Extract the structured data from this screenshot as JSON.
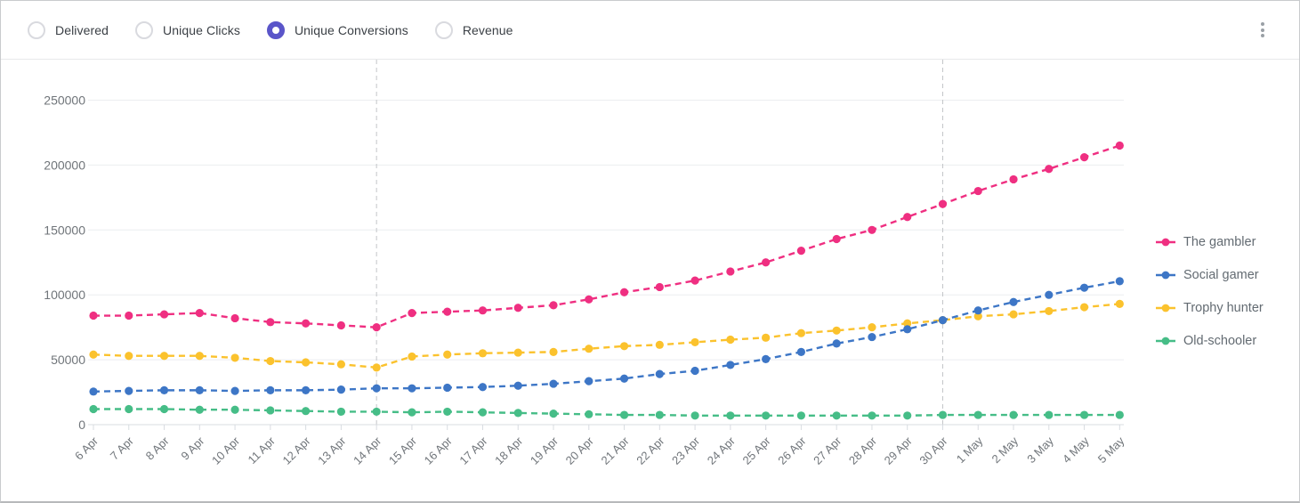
{
  "toolbar": {
    "options": [
      {
        "label": "Delivered",
        "selected": false
      },
      {
        "label": "Unique Clicks",
        "selected": false
      },
      {
        "label": "Unique Conversions",
        "selected": true
      },
      {
        "label": "Revenue",
        "selected": false
      }
    ],
    "menu_icon": "kebab-vertical-icon"
  },
  "colors": {
    "accent": "#5a55c9",
    "grid": "#eceef0",
    "axis": "#d8dce1",
    "marker_line": "#c3c5c8",
    "tick_text": "#70757a",
    "legend_text": "#636b72"
  },
  "chart_data": {
    "type": "line",
    "line_style": "dashed",
    "grid": "horizontal",
    "legend_position": "right",
    "categories": [
      "6 Apr",
      "7 Apr",
      "8 Apr",
      "9 Apr",
      "10 Apr",
      "11 Apr",
      "12 Apr",
      "13 Apr",
      "14 Apr",
      "15 Apr",
      "16 Apr",
      "17 Apr",
      "18 Apr",
      "19 Apr",
      "20 Apr",
      "21 Apr",
      "22 Apr",
      "23 Apr",
      "24 Apr",
      "25 Apr",
      "26 Apr",
      "27 Apr",
      "28 Apr",
      "29 Apr",
      "30 Apr",
      "1 May",
      "2 May",
      "3 May",
      "4 May",
      "5 May"
    ],
    "series": [
      {
        "name": "The gambler",
        "color": "#ef2f81",
        "values": [
          84000,
          84000,
          85000,
          86000,
          82000,
          79000,
          78000,
          76500,
          75000,
          86000,
          87000,
          88000,
          90000,
          92000,
          96500,
          102000,
          106000,
          111000,
          118000,
          125000,
          134000,
          143000,
          150000,
          160000,
          170000,
          180000,
          189000,
          197000,
          206000,
          215000
        ]
      },
      {
        "name": "Social gamer",
        "color": "#3d76c6",
        "values": [
          25500,
          26000,
          26500,
          26500,
          26000,
          26500,
          26500,
          27000,
          28000,
          28000,
          28500,
          29000,
          30000,
          31500,
          33500,
          35500,
          39000,
          41500,
          46000,
          50500,
          56000,
          62500,
          67500,
          73500,
          80500,
          88000,
          94500,
          100000,
          105500,
          110500
        ]
      },
      {
        "name": "Trophy hunter",
        "color": "#fbc22d",
        "values": [
          54000,
          53000,
          53000,
          53000,
          51500,
          49000,
          48000,
          46500,
          44000,
          52500,
          54000,
          55000,
          55500,
          56000,
          58500,
          60500,
          61500,
          63500,
          65500,
          67000,
          70500,
          72500,
          75000,
          78000,
          80500,
          83500,
          85000,
          87500,
          90500,
          93000
        ]
      },
      {
        "name": "Old-schooler",
        "color": "#46bd87",
        "values": [
          12000,
          12000,
          12000,
          11500,
          11500,
          11000,
          10500,
          10000,
          10000,
          9500,
          10000,
          9500,
          9000,
          8500,
          8000,
          7500,
          7500,
          7000,
          7000,
          7000,
          7000,
          7000,
          7000,
          7000,
          7500,
          7500,
          7500,
          7500,
          7500,
          7500
        ]
      }
    ],
    "y_ticks": [
      0,
      50000,
      100000,
      150000,
      200000,
      250000
    ],
    "ylim": [
      0,
      250000
    ],
    "marker_categories": [
      "14 Apr",
      "30 Apr"
    ]
  }
}
